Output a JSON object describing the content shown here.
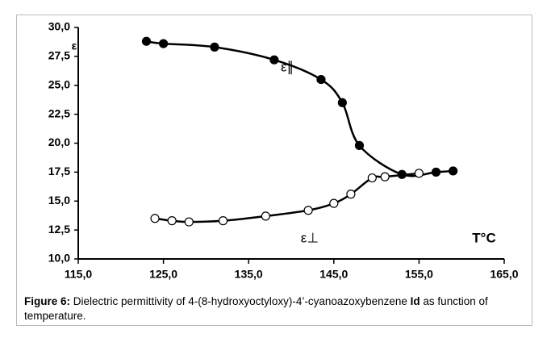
{
  "chart_data": {
    "type": "line",
    "series": [
      {
        "name": "ε∥",
        "color": "#000000",
        "marker": "filled",
        "x": [
          123,
          125,
          131,
          138,
          143.5,
          146,
          148,
          153,
          157,
          159
        ],
        "values": [
          28.8,
          28.6,
          28.3,
          27.2,
          25.5,
          23.5,
          19.8,
          17.3,
          17.5,
          17.6
        ]
      },
      {
        "name": "ε⊥",
        "color": "#000000",
        "marker": "open",
        "x": [
          124,
          126,
          128,
          132,
          137,
          142,
          145,
          147,
          149.5,
          151,
          155
        ],
        "values": [
          13.5,
          13.3,
          13.2,
          13.3,
          13.7,
          14.2,
          14.8,
          15.6,
          17.0,
          17.1,
          17.4
        ]
      }
    ],
    "y_axis_label": "ε",
    "x_axis_label": "T°C",
    "xlim": [
      115,
      165
    ],
    "xticks": [
      {
        "value": 115,
        "label": "115,0"
      },
      {
        "value": 125,
        "label": "125,0"
      },
      {
        "value": 135,
        "label": "135,0"
      },
      {
        "value": 145,
        "label": "145,0"
      },
      {
        "value": 155,
        "label": "155,0"
      },
      {
        "value": 165,
        "label": "165,0"
      }
    ],
    "ylim": [
      10,
      30
    ],
    "yticks": [
      {
        "value": 10,
        "label": "10,0"
      },
      {
        "value": 12.5,
        "label": "12,5"
      },
      {
        "value": 15,
        "label": "15,0"
      },
      {
        "value": 17.5,
        "label": "17,5"
      },
      {
        "value": 20,
        "label": "20,0"
      },
      {
        "value": 22.5,
        "label": "22,5"
      },
      {
        "value": 25,
        "label": "25,0"
      },
      {
        "value": 27.5,
        "label": "27,5"
      },
      {
        "value": 30,
        "label": "30,0"
      }
    ],
    "grid": false,
    "caption": {
      "label": "Figure 6:",
      "text": " Dielectric permittivity of 4-(8-hydroxyoctyloxy)-4’-cyanoazoxybenzene ",
      "compound": "Id",
      "tail": " as function of temperature."
    }
  }
}
